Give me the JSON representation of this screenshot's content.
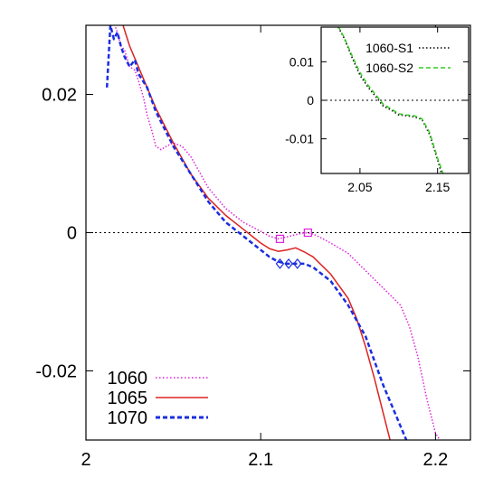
{
  "chart_data": [
    {
      "type": "line",
      "role": "main",
      "title": "",
      "xlabel": "",
      "ylabel": "",
      "xlim": [
        2.0,
        2.22
      ],
      "ylim": [
        -0.03,
        0.03
      ],
      "x_ticks": [
        2.0,
        2.1,
        2.2
      ],
      "x_tick_labels": [
        "2",
        "2.1",
        "2.2"
      ],
      "y_ticks": [
        -0.02,
        0,
        0.02
      ],
      "y_tick_labels": [
        "-0.02",
        "0",
        "0.02"
      ],
      "reference_line": {
        "y": 0,
        "style": "dotted"
      },
      "legend_position": "bottom-left",
      "series": [
        {
          "name": "1060",
          "color": "#dd22dd",
          "style": "dotted",
          "x": [
            2.015,
            2.018,
            2.02,
            2.022,
            2.025,
            2.028,
            2.03,
            2.033,
            2.035,
            2.038,
            2.04,
            2.043,
            2.046,
            2.05,
            2.055,
            2.06,
            2.07,
            2.08,
            2.09,
            2.1,
            2.105,
            2.11,
            2.115,
            2.12,
            2.125,
            2.13,
            2.135,
            2.14,
            2.15,
            2.16,
            2.17,
            2.18,
            2.185,
            2.19,
            2.195,
            2.2,
            2.205
          ],
          "y": [
            0.031,
            0.029,
            0.027,
            0.0265,
            0.024,
            0.0235,
            0.022,
            0.0195,
            0.017,
            0.0145,
            0.0125,
            0.012,
            0.0125,
            0.013,
            0.0125,
            0.011,
            0.0065,
            0.0035,
            0.0015,
            0.0002,
            -0.0005,
            -0.0009,
            -0.0006,
            -0.0003,
            0.0,
            -0.0002,
            -0.0008,
            -0.0015,
            -0.003,
            -0.0055,
            -0.008,
            -0.0105,
            -0.0135,
            -0.018,
            -0.024,
            -0.029,
            -0.031
          ]
        },
        {
          "name": "1065",
          "color": "#dd2222",
          "style": "solid",
          "x": [
            2.02,
            2.025,
            2.03,
            2.035,
            2.04,
            2.045,
            2.05,
            2.06,
            2.07,
            2.08,
            2.09,
            2.1,
            2.105,
            2.11,
            2.115,
            2.12,
            2.125,
            2.13,
            2.14,
            2.15,
            2.155,
            2.16,
            2.165,
            2.17,
            2.175
          ],
          "y": [
            0.031,
            0.027,
            0.024,
            0.021,
            0.018,
            0.0155,
            0.013,
            0.0085,
            0.005,
            0.0025,
            0.0005,
            -0.0015,
            -0.0023,
            -0.0027,
            -0.0025,
            -0.0022,
            -0.0028,
            -0.0035,
            -0.006,
            -0.0095,
            -0.0125,
            -0.0165,
            -0.021,
            -0.026,
            -0.031
          ]
        },
        {
          "name": "1070",
          "color": "#1a2ee0",
          "style": "dashed",
          "x": [
            2.012,
            2.014,
            2.016,
            2.018,
            2.02,
            2.022,
            2.025,
            2.028,
            2.03,
            2.035,
            2.04,
            2.05,
            2.06,
            2.07,
            2.08,
            2.09,
            2.1,
            2.105,
            2.11,
            2.115,
            2.12,
            2.125,
            2.13,
            2.14,
            2.15,
            2.16,
            2.165,
            2.17,
            2.175,
            2.18,
            2.185
          ],
          "y": [
            0.021,
            0.03,
            0.028,
            0.029,
            0.027,
            0.0255,
            0.024,
            0.025,
            0.023,
            0.021,
            0.0175,
            0.0125,
            0.0085,
            0.0045,
            0.0015,
            -0.0005,
            -0.0025,
            -0.0035,
            -0.0042,
            -0.0045,
            -0.0045,
            -0.0045,
            -0.005,
            -0.007,
            -0.0105,
            -0.015,
            -0.0185,
            -0.022,
            -0.025,
            -0.028,
            -0.031
          ]
        }
      ],
      "markers": [
        {
          "series": "1060",
          "shape": "square",
          "points": [
            [
              2.111,
              -0.0009
            ],
            [
              2.127,
              0.0
            ]
          ]
        },
        {
          "series": "1070",
          "shape": "diamond",
          "points": [
            [
              2.111,
              -0.0045
            ],
            [
              2.116,
              -0.0045
            ],
            [
              2.121,
              -0.0045
            ]
          ]
        }
      ]
    },
    {
      "type": "line",
      "role": "inset",
      "title": "",
      "xlabel": "",
      "ylabel": "",
      "xlim": [
        2.0,
        2.19
      ],
      "ylim": [
        -0.019,
        0.019
      ],
      "x_ticks": [
        2.05,
        2.15
      ],
      "x_tick_labels": [
        "2.05",
        "2.15"
      ],
      "y_ticks": [
        -0.01,
        0,
        0.01
      ],
      "y_tick_labels": [
        "-0.01",
        "0",
        "0.01"
      ],
      "reference_line": {
        "y": 0,
        "style": "dotted"
      },
      "legend_position": "top-right",
      "series": [
        {
          "name": "1060-S1",
          "color": "#000000",
          "style": "dotted",
          "x": [
            2.022,
            2.03,
            2.04,
            2.05,
            2.06,
            2.07,
            2.08,
            2.09,
            2.1,
            2.11,
            2.12,
            2.13,
            2.14,
            2.15,
            2.155
          ],
          "y": [
            0.019,
            0.016,
            0.011,
            0.0065,
            0.0035,
            0.001,
            -0.0015,
            -0.0025,
            -0.0038,
            -0.004,
            -0.0043,
            -0.005,
            -0.009,
            -0.0155,
            -0.019
          ]
        },
        {
          "name": "1060-S2",
          "color": "#33cc22",
          "style": "dashed",
          "x": [
            2.022,
            2.03,
            2.04,
            2.05,
            2.06,
            2.07,
            2.08,
            2.09,
            2.1,
            2.11,
            2.12,
            2.13,
            2.14,
            2.15,
            2.157
          ],
          "y": [
            0.0192,
            0.0162,
            0.0115,
            0.0072,
            0.004,
            0.0015,
            -0.001,
            -0.0022,
            -0.0035,
            -0.0038,
            -0.004,
            -0.0048,
            -0.0085,
            -0.015,
            -0.019
          ]
        }
      ]
    }
  ]
}
